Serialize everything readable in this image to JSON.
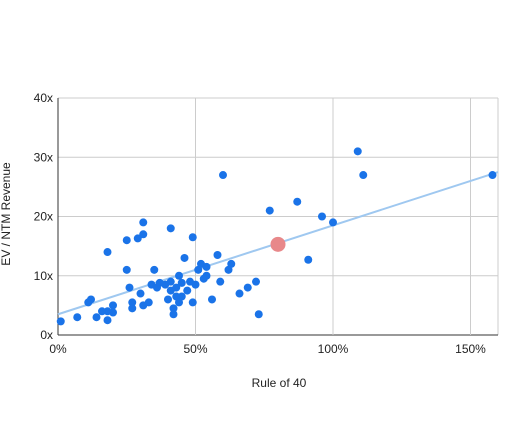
{
  "chart_data": {
    "type": "scatter",
    "title": "",
    "xlabel": "Rule of 40",
    "ylabel": "EV / NTM Revenue",
    "xlim": [
      0,
      160
    ],
    "ylim": [
      0,
      40
    ],
    "x_ticks": [
      {
        "value": 0,
        "label": "0%"
      },
      {
        "value": 50,
        "label": "50%"
      },
      {
        "value": 100,
        "label": "100%"
      },
      {
        "value": 150,
        "label": "150%"
      }
    ],
    "y_ticks": [
      {
        "value": 0,
        "label": "0x"
      },
      {
        "value": 10,
        "label": "10x"
      },
      {
        "value": 20,
        "label": "20x"
      },
      {
        "value": 30,
        "label": "30x"
      },
      {
        "value": 40,
        "label": "40x"
      }
    ],
    "grid": true,
    "colors": {
      "points": "#1a73e8",
      "trendline": "#9fc8f0",
      "highlight": "#e8888a"
    },
    "series": [
      {
        "points": [
          [
            1,
            2.3
          ],
          [
            7,
            3.0
          ],
          [
            11,
            5.5
          ],
          [
            12,
            6.0
          ],
          [
            14,
            3.0
          ],
          [
            16,
            4.0
          ],
          [
            18,
            2.5
          ],
          [
            18,
            4.0
          ],
          [
            18,
            14.0
          ],
          [
            20,
            5.0
          ],
          [
            20,
            3.8
          ],
          [
            25,
            16.0
          ],
          [
            25,
            11.0
          ],
          [
            26,
            8.0
          ],
          [
            27,
            5.5
          ],
          [
            27,
            4.5
          ],
          [
            29,
            16.3
          ],
          [
            30,
            7.0
          ],
          [
            31,
            19.0
          ],
          [
            31,
            17.0
          ],
          [
            31,
            5.0
          ],
          [
            33,
            5.5
          ],
          [
            34,
            8.5
          ],
          [
            35,
            11.0
          ],
          [
            36,
            8.0
          ],
          [
            37,
            8.8
          ],
          [
            39,
            8.5
          ],
          [
            40,
            6.0
          ],
          [
            41,
            18.0
          ],
          [
            41,
            9.0
          ],
          [
            41,
            7.5
          ],
          [
            42,
            4.5
          ],
          [
            42,
            3.5
          ],
          [
            43,
            6.5
          ],
          [
            43,
            8.0
          ],
          [
            44,
            10.0
          ],
          [
            44,
            5.5
          ],
          [
            45,
            8.8
          ],
          [
            45,
            6.5
          ],
          [
            46,
            13.0
          ],
          [
            47,
            7.5
          ],
          [
            48,
            9.0
          ],
          [
            49,
            5.5
          ],
          [
            49,
            16.5
          ],
          [
            50,
            8.5
          ],
          [
            51,
            11.0
          ],
          [
            52,
            12.0
          ],
          [
            53,
            9.5
          ],
          [
            54,
            10.0
          ],
          [
            54,
            11.5
          ],
          [
            56,
            6.0
          ],
          [
            58,
            13.5
          ],
          [
            59,
            9.0
          ],
          [
            60,
            27.0
          ],
          [
            62,
            11.0
          ],
          [
            63,
            12.0
          ],
          [
            66,
            7.0
          ],
          [
            69,
            8.0
          ],
          [
            72,
            9.0
          ],
          [
            73,
            3.5
          ],
          [
            77,
            21.0
          ],
          [
            80,
            15.3
          ],
          [
            87,
            22.5
          ],
          [
            91,
            12.7
          ],
          [
            96,
            20.0
          ],
          [
            100,
            19.0
          ],
          [
            109,
            31.0
          ],
          [
            111,
            27.0
          ],
          [
            158,
            27.0
          ]
        ]
      }
    ],
    "trendline": {
      "x": [
        0,
        160
      ],
      "y": [
        3.5,
        27.5
      ]
    },
    "highlight_point": [
      80,
      15.3
    ]
  }
}
